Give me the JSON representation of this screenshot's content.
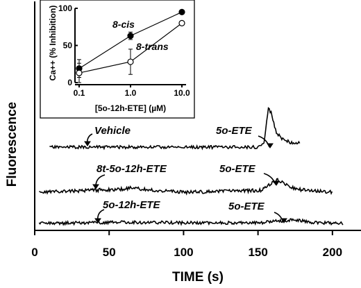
{
  "chart_data": [
    {
      "type": "line",
      "xlabel": "TIME (s)",
      "ylabel": "Fluorescence",
      "xlim": [
        0,
        208
      ],
      "xticks": [
        0,
        50,
        100,
        150,
        200
      ],
      "grid": false,
      "series": [
        {
          "traces_only": true,
          "x": [
            10,
            40,
            150,
            154,
            157,
            159,
            162,
            165,
            168,
            172,
            178
          ],
          "y": [
            0,
            0,
            0,
            0.1,
            1.0,
            0.85,
            0.4,
            0.25,
            0.18,
            0.12,
            0.1
          ]
        },
        {
          "traces_only": true,
          "x": [
            3,
            60,
            65,
            75,
            100,
            152,
            158,
            163,
            168,
            175,
            185,
            200
          ],
          "y": [
            0,
            0.05,
            0.07,
            0.04,
            0,
            0.03,
            0.12,
            0.2,
            0.13,
            0.05,
            0.03,
            0
          ]
        },
        {
          "traces_only": true,
          "x": [
            3,
            60,
            100,
            150,
            170,
            175,
            185,
            207
          ],
          "y": [
            0,
            0.02,
            0.01,
            0.01,
            0.05,
            0.06,
            0.02,
            0
          ]
        }
      ],
      "annotations": [
        {
          "text": "Vehicle",
          "x": 45,
          "y": 0.3
        },
        {
          "text": "5o-ETE",
          "x": 128,
          "y": 0.3
        },
        {
          "text": "8t-5o-12h-ETE",
          "x": 45,
          "y": 0.3
        },
        {
          "text": "5o-ETE",
          "x": 131,
          "y": 0.3
        },
        {
          "text": "5o-12h-ETE",
          "x": 45,
          "y": 0.3
        },
        {
          "text": "5o-ETE",
          "x": 141,
          "y": 0.3
        }
      ]
    },
    {
      "type": "line",
      "xlabel": "[5o-12h-ETE] (µM)",
      "ylabel": "Ca++ (% Inhibition)",
      "xscale": "log",
      "xlim": [
        0.1,
        10.0
      ],
      "ylim": [
        0,
        100
      ],
      "xticks": [
        "0.1",
        "1.0",
        "10.0"
      ],
      "yticks": [
        "0",
        "50",
        "100"
      ],
      "series": [
        {
          "name": "8-cis",
          "marker": "filled-circle",
          "x": [
            0.1,
            1.0,
            10.0
          ],
          "y": [
            19,
            63,
            95
          ],
          "error": [
            12,
            5,
            0
          ]
        },
        {
          "name": "8-trans",
          "marker": "open-circle",
          "x": [
            0.1,
            1.0,
            10.0
          ],
          "y": [
            13,
            28,
            80
          ],
          "error": [
            13,
            17,
            0
          ]
        }
      ]
    }
  ]
}
